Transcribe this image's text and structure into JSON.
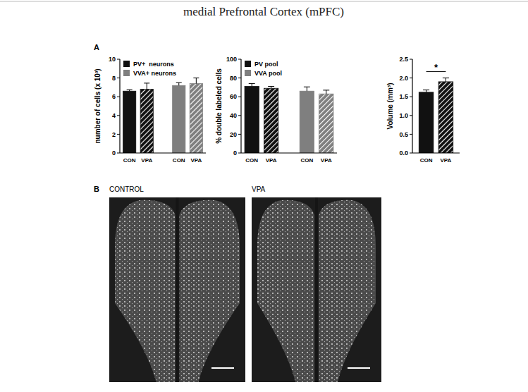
{
  "figure": {
    "title": "medial Prefrontal Cortex (mPFC)",
    "panels": [
      "A",
      "B"
    ],
    "images": [
      "CONTROL",
      "VPA"
    ]
  },
  "chart_data": [
    {
      "type": "bar",
      "ylabel": "number of cells (x 10³)",
      "categories": [
        "CON",
        "VPA"
      ],
      "series": [
        {
          "name": "PV+  neurons",
          "color": "#111111",
          "values": [
            6.6,
            6.8
          ],
          "errors": [
            0.15,
            0.65
          ]
        },
        {
          "name": "VVA+ neurons",
          "color": "#7f7f7f",
          "values": [
            7.2,
            7.4
          ],
          "errors": [
            0.3,
            0.6
          ]
        }
      ],
      "ylim": [
        0,
        10
      ],
      "yticks": [
        0,
        2,
        4,
        6,
        8,
        10
      ],
      "legend": "top-left"
    },
    {
      "type": "bar",
      "ylabel": "% double labeled cells",
      "categories": [
        "CON",
        "VPA"
      ],
      "series": [
        {
          "name": "PV pool",
          "color": "#111111",
          "values": [
            71,
            69
          ],
          "errors": [
            3,
            2
          ]
        },
        {
          "name": "VVA pool",
          "color": "#7f7f7f",
          "values": [
            66,
            63
          ],
          "errors": [
            4.5,
            4
          ]
        }
      ],
      "ylim": [
        0,
        100
      ],
      "yticks": [
        0,
        20,
        40,
        60,
        80,
        100
      ],
      "legend": "top-left"
    },
    {
      "type": "bar",
      "ylabel": "Volume (mm³)",
      "categories": [
        "CON",
        "VPA"
      ],
      "series": [
        {
          "color": "#111111",
          "values": [
            1.62,
            1.9
          ],
          "errors": [
            0.06,
            0.1
          ]
        }
      ],
      "ylim": [
        0,
        2.5
      ],
      "yticks": [
        {
          "value": 0,
          "label": "0.0"
        },
        0.5,
        {
          "value": 1,
          "label": "1.0"
        },
        1.5,
        {
          "value": 2,
          "label": "2.0"
        },
        2.5
      ],
      "annotations": [
        "*"
      ]
    }
  ]
}
